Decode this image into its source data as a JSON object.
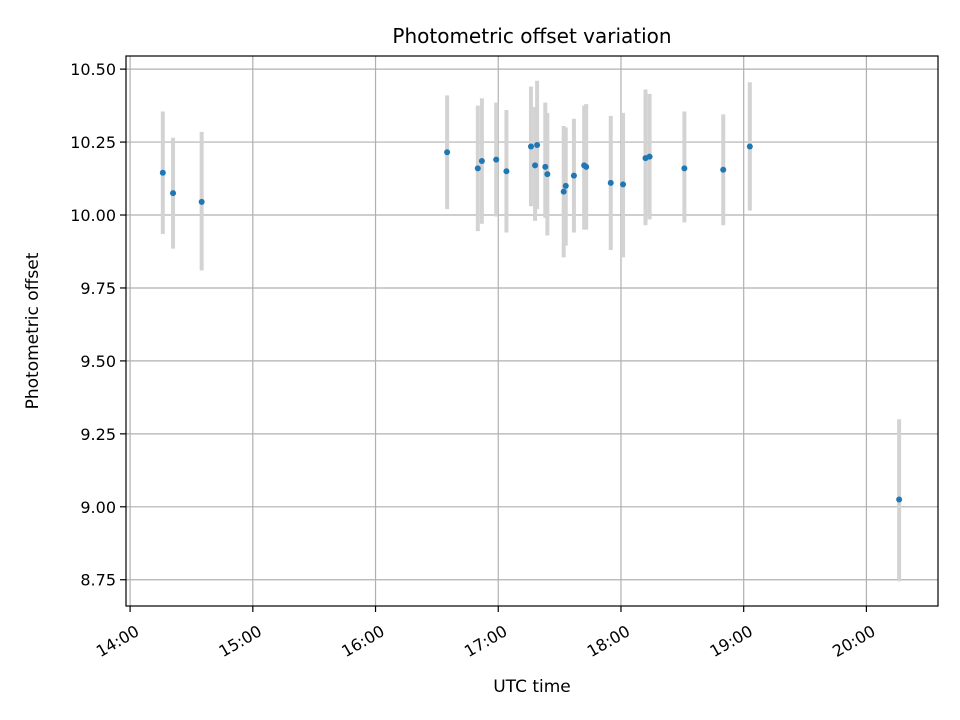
{
  "chart_data": {
    "type": "scatter",
    "title": "Photometric offset variation",
    "xlabel": "UTC time",
    "ylabel": "Photometric offset",
    "xlim": [
      "13:58",
      "20:35"
    ],
    "ylim": [
      8.66,
      10.545
    ],
    "x_ticks": [
      "14:00",
      "15:00",
      "16:00",
      "17:00",
      "18:00",
      "19:00",
      "20:00"
    ],
    "y_ticks": [
      "8.75",
      "9.00",
      "9.25",
      "9.50",
      "9.75",
      "10.00",
      "10.25",
      "10.50"
    ],
    "grid": true,
    "colors": {
      "marker": "#1f77b4",
      "errorbar": "#d3d3d3",
      "grid": "#b0b0b0",
      "axes": "#000000"
    },
    "points": [
      {
        "x": "14:16",
        "y": 10.145,
        "lo": 9.935,
        "hi": 10.355
      },
      {
        "x": "14:21",
        "y": 10.075,
        "lo": 9.885,
        "hi": 10.265
      },
      {
        "x": "14:35",
        "y": 10.045,
        "lo": 9.81,
        "hi": 10.285
      },
      {
        "x": "16:35",
        "y": 10.215,
        "lo": 10.02,
        "hi": 10.41
      },
      {
        "x": "16:50",
        "y": 10.16,
        "lo": 9.945,
        "hi": 10.375
      },
      {
        "x": "16:52",
        "y": 10.185,
        "lo": 9.97,
        "hi": 10.4
      },
      {
        "x": "16:59",
        "y": 10.19,
        "lo": 9.995,
        "hi": 10.385
      },
      {
        "x": "17:04",
        "y": 10.15,
        "lo": 9.94,
        "hi": 10.36
      },
      {
        "x": "17:16",
        "y": 10.235,
        "lo": 10.03,
        "hi": 10.44
      },
      {
        "x": "17:18",
        "y": 10.17,
        "lo": 9.98,
        "hi": 10.37
      },
      {
        "x": "17:19",
        "y": 10.24,
        "lo": 10.02,
        "hi": 10.46
      },
      {
        "x": "17:23",
        "y": 10.165,
        "lo": 9.99,
        "hi": 10.385
      },
      {
        "x": "17:24",
        "y": 10.14,
        "lo": 9.93,
        "hi": 10.35
      },
      {
        "x": "17:32",
        "y": 10.08,
        "lo": 9.855,
        "hi": 10.305
      },
      {
        "x": "17:33",
        "y": 10.1,
        "lo": 9.895,
        "hi": 10.3
      },
      {
        "x": "17:37",
        "y": 10.135,
        "lo": 9.94,
        "hi": 10.33
      },
      {
        "x": "17:42",
        "y": 10.17,
        "lo": 9.95,
        "hi": 10.375
      },
      {
        "x": "17:43",
        "y": 10.165,
        "lo": 9.95,
        "hi": 10.38
      },
      {
        "x": "17:55",
        "y": 10.11,
        "lo": 9.88,
        "hi": 10.34
      },
      {
        "x": "18:01",
        "y": 10.105,
        "lo": 9.855,
        "hi": 10.35
      },
      {
        "x": "18:12",
        "y": 10.195,
        "lo": 9.965,
        "hi": 10.43
      },
      {
        "x": "18:14",
        "y": 10.2,
        "lo": 9.985,
        "hi": 10.415
      },
      {
        "x": "18:31",
        "y": 10.16,
        "lo": 9.975,
        "hi": 10.355
      },
      {
        "x": "18:50",
        "y": 10.155,
        "lo": 9.965,
        "hi": 10.345
      },
      {
        "x": "19:03",
        "y": 10.235,
        "lo": 10.015,
        "hi": 10.455
      },
      {
        "x": "20:16",
        "y": 9.025,
        "lo": 8.745,
        "hi": 9.3
      }
    ]
  }
}
